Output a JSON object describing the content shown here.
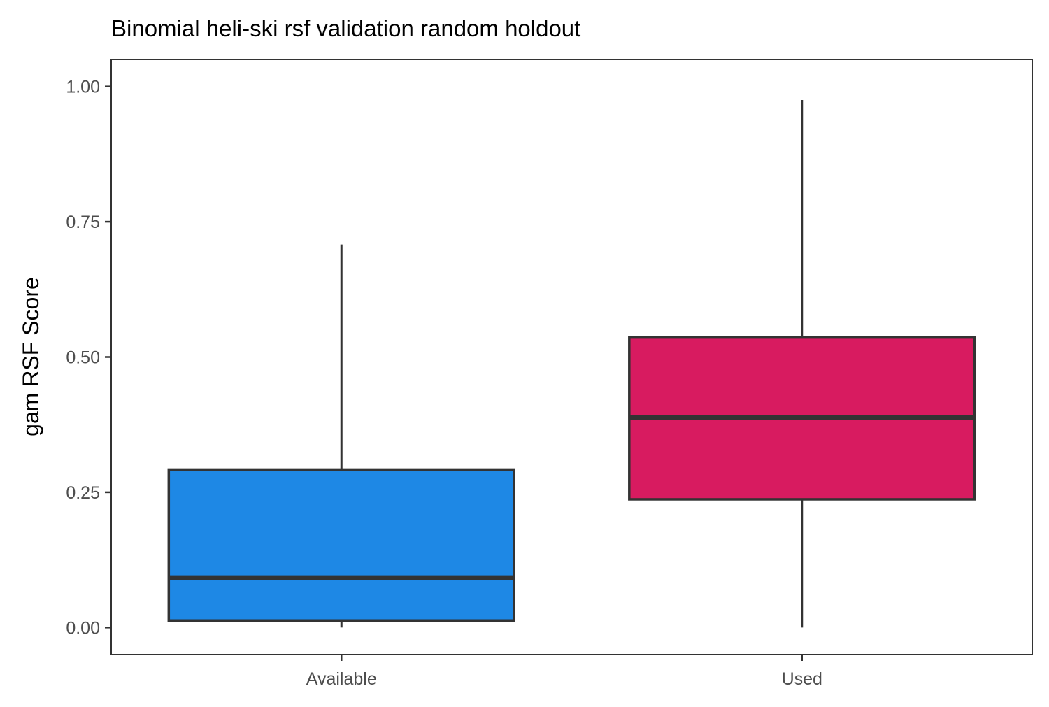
{
  "chart_data": {
    "type": "boxplot",
    "title": "Binomial heli-ski rsf validation random holdout",
    "xlabel": "",
    "ylabel": "gam RSF Score",
    "ylim": [
      -0.05,
      1.05
    ],
    "y_ticks": [
      0.0,
      0.25,
      0.5,
      0.75,
      1.0
    ],
    "y_tick_labels": [
      "0.00",
      "0.25",
      "0.50",
      "0.75",
      "1.00"
    ],
    "grid": false,
    "categories": [
      "Available",
      "Used"
    ],
    "boxes": [
      {
        "category": "Available",
        "min": 0.0,
        "q1": 0.013,
        "median": 0.092,
        "q3": 0.292,
        "max": 0.708,
        "color": "#1E88E5"
      },
      {
        "category": "Used",
        "min": 0.0,
        "q1": 0.237,
        "median": 0.388,
        "q3": 0.536,
        "max": 0.975,
        "color": "#D81B60"
      }
    ]
  }
}
